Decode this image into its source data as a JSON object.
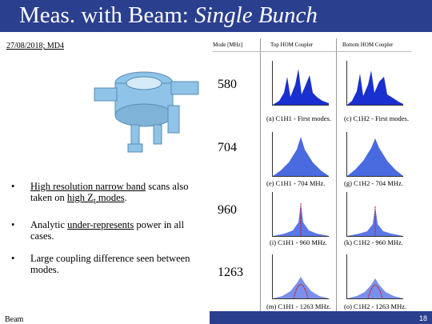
{
  "title": {
    "main": "Meas. with Beam: ",
    "italic": "Single Bunch"
  },
  "date_label": "27/08/2018; MD4",
  "columns": {
    "mode": "Mode [MHz]",
    "top": "Top HOM Coupler",
    "bottom": "Bottom HOM Coupler"
  },
  "modes": [
    {
      "freq": "580",
      "top_caption": "(a) C1H1 - First modes.",
      "bottom_caption": "(c) C1H2 - First modes."
    },
    {
      "freq": "704",
      "top_caption": "(e) C1H1 - 704 MHz.",
      "bottom_caption": "(g) C1H2 - 704 MHz."
    },
    {
      "freq": "960",
      "top_caption": "(i) C1H1 - 960 MHz.",
      "bottom_caption": "(k) C1H2 - 960 MHz."
    },
    {
      "freq": "1263",
      "top_caption": "(m) C1H1 - 1263 MHz.",
      "bottom_caption": "(o) C1H2 - 1263 MHz."
    }
  ],
  "bullets": {
    "b1_link": "High resolution narrow band",
    "b1_mid": " scans also taken on ",
    "b1_link2": "high Z",
    "b1_sub": "t",
    "b1_link3": " modes",
    "b1_end": ".",
    "b2_start": "Analytic ",
    "b2_link": "under-represents",
    "b2_end": " power in all cases.",
    "b3": "Large coupling difference seen between modes."
  },
  "footer": {
    "label": "Beam",
    "page": "18"
  },
  "colors": {
    "accent": "#2b3f8f",
    "plot_fill": "#1a2fd0",
    "cavity": "#8fc3e8"
  }
}
